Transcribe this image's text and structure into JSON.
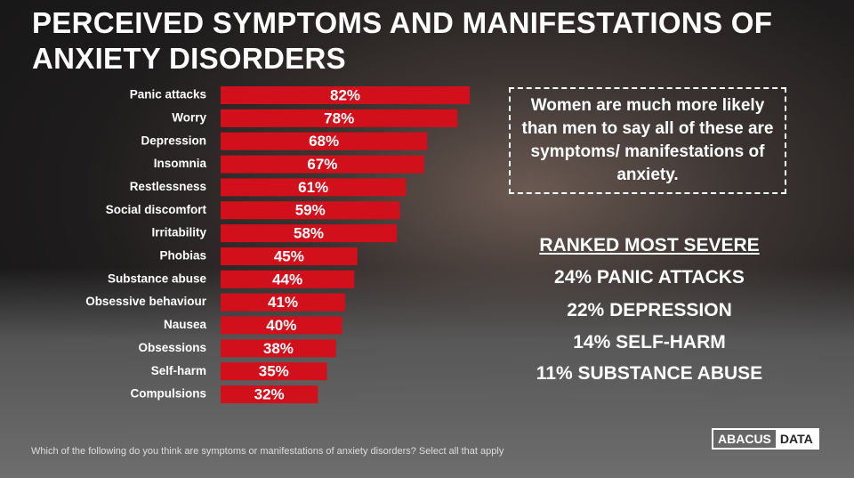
{
  "title": "PERCEIVED SYMPTOMS AND MANIFESTATIONS OF ANXIETY DISORDERS",
  "chart_data": {
    "type": "bar",
    "orientation": "horizontal",
    "categories": [
      "Panic attacks",
      "Worry",
      "Depression",
      "Insomnia",
      "Restlessness",
      "Social discomfort",
      "Irritability",
      "Phobias",
      "Substance abuse",
      "Obsessive behaviour",
      "Nausea",
      "Obsessions",
      "Self-harm",
      "Compulsions"
    ],
    "values": [
      82,
      78,
      68,
      67,
      61,
      59,
      58,
      45,
      44,
      41,
      40,
      38,
      35,
      32
    ],
    "value_labels": [
      "82%",
      "78%",
      "68%",
      "67%",
      "61%",
      "59%",
      "58%",
      "45%",
      "44%",
      "41%",
      "40%",
      "38%",
      "35%",
      "32%"
    ],
    "color": "#d2101c"
  },
  "callout": "Women are much more likely than men to say all of these are symptoms/ manifestations of anxiety.",
  "ranked": {
    "heading": "RANKED MOST SEVERE",
    "items": [
      "24% PANIC ATTACKS",
      "22% DEPRESSION",
      "14% SELF-HARM",
      "11% SUBSTANCE ABUSE"
    ]
  },
  "footnote": "Which of the following do you think are symptoms or manifestations of anxiety disorders? Select all that apply",
  "logo": [
    "ABACUS",
    "DATA"
  ]
}
